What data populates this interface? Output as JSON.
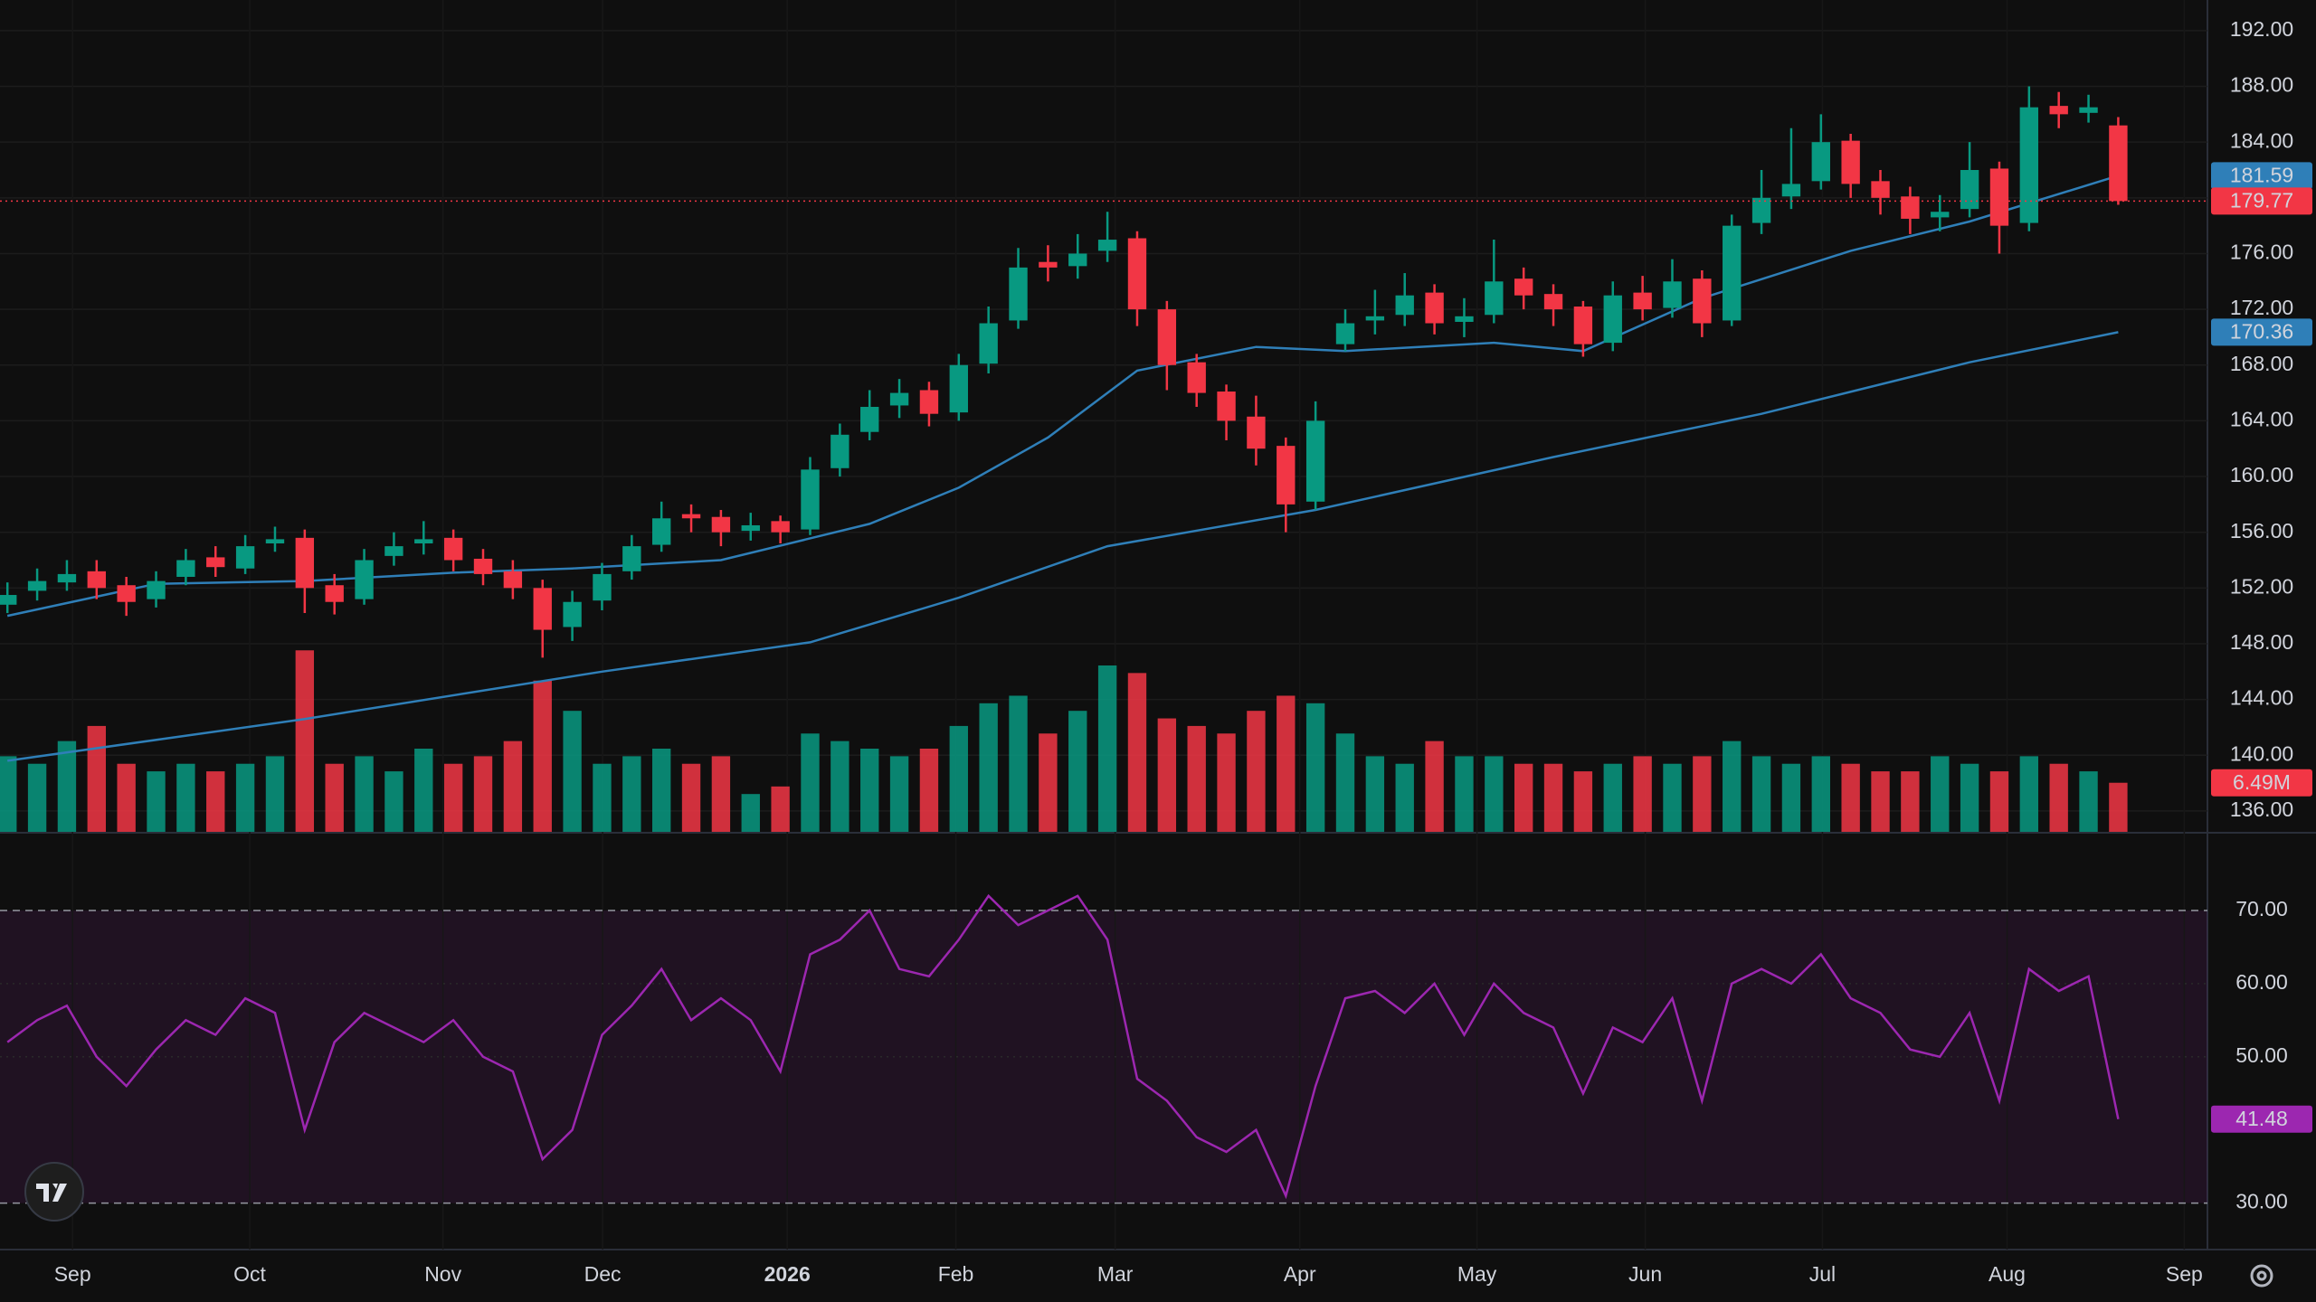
{
  "chart_data": {
    "type": "candlestick",
    "categories": [
      null,
      null,
      null,
      null,
      null,
      null,
      null,
      null,
      null,
      null,
      null,
      null,
      null,
      null,
      null,
      null,
      null,
      null,
      null,
      null,
      null,
      null,
      null,
      null,
      null,
      null,
      null,
      null,
      null,
      null,
      null,
      null,
      null,
      null,
      null,
      null,
      null,
      null,
      null,
      null,
      null,
      null,
      null,
      null,
      null,
      null,
      null,
      null,
      null,
      null,
      null,
      null,
      null,
      null,
      null,
      null,
      null,
      null,
      null,
      null,
      null,
      null,
      null,
      null,
      null,
      null,
      null,
      null,
      null,
      null,
      null,
      null
    ],
    "open": [
      150.8,
      151.8,
      152.4,
      153.2,
      152.2,
      151.2,
      152.8,
      154.2,
      153.4,
      155.2,
      155.6,
      152.2,
      151.2,
      154.3,
      155.2,
      155.6,
      154.1,
      153.2,
      152,
      149.2,
      151.1,
      153.2,
      155.1,
      157.3,
      157.1,
      156.1,
      156.8,
      156.2,
      160.6,
      163.2,
      165.1,
      166.2,
      164.6,
      168.1,
      171.2,
      175.4,
      175.1,
      176.2,
      177.1,
      172,
      168.2,
      166.1,
      164.3,
      162.2,
      158.2,
      169.5,
      171.2,
      171.6,
      173.2,
      171.1,
      171.6,
      174.2,
      173.1,
      172.2,
      169.6,
      173.2,
      172.1,
      174.2,
      171.2,
      178.2,
      180.1,
      181.2,
      184.1,
      181.2,
      180.1,
      178.6,
      179.2,
      182.1,
      178.2,
      186.6,
      186.1,
      185.2
    ],
    "high": [
      152.4,
      153.4,
      154,
      154,
      152.8,
      153.2,
      154.8,
      155,
      155.8,
      156.4,
      156.2,
      153,
      154.8,
      156,
      156.8,
      156.2,
      154.8,
      154,
      152.6,
      151.8,
      153.8,
      155.8,
      158.2,
      158,
      157.6,
      157.4,
      157.2,
      161.4,
      163.8,
      166.2,
      167,
      166.8,
      168.8,
      172.2,
      176.4,
      176.6,
      177.4,
      179,
      177.6,
      172.6,
      168.8,
      166.6,
      165.8,
      162.8,
      165.4,
      172,
      173.4,
      174.6,
      173.8,
      172.8,
      177,
      175,
      173.8,
      172.6,
      174,
      174.4,
      175.6,
      174.8,
      178.8,
      182,
      185,
      186,
      184.6,
      182,
      180.8,
      180.2,
      184,
      182.6,
      188,
      187.6,
      187.4,
      185.8
    ],
    "low": [
      150.2,
      151.1,
      151.8,
      151.2,
      150,
      150.6,
      152.2,
      152.8,
      153,
      154.6,
      150.2,
      150.1,
      150.8,
      153.6,
      154.4,
      153.2,
      152.2,
      151.2,
      147,
      148.2,
      150.4,
      152.6,
      154.6,
      156,
      155,
      155.4,
      155.2,
      155.8,
      160,
      162.6,
      164.2,
      163.6,
      164,
      167.4,
      170.6,
      174,
      174.2,
      175.4,
      170.8,
      166.2,
      165,
      162.6,
      160.8,
      156,
      157.6,
      169,
      170.2,
      170.8,
      170.2,
      170,
      171,
      172,
      170.8,
      168.6,
      169,
      171.2,
      171.4,
      170,
      170.8,
      177.4,
      179.2,
      180.6,
      180,
      178.8,
      177.4,
      177.6,
      178.6,
      176,
      177.6,
      185,
      185.4,
      179.5
    ],
    "close": [
      151.5,
      152.5,
      153,
      152,
      151,
      152.5,
      154,
      153.5,
      155,
      155.5,
      152,
      151,
      154,
      155,
      155.5,
      154,
      153,
      152,
      149,
      151,
      153,
      155,
      157,
      157,
      156,
      156.5,
      156,
      160.5,
      163,
      165,
      166,
      164.5,
      168,
      171,
      175,
      175,
      176,
      177,
      172,
      168,
      166,
      164,
      162,
      158,
      164,
      171,
      171.5,
      173,
      171,
      171.5,
      174,
      173,
      172,
      169.5,
      173,
      172,
      174,
      171,
      178,
      180,
      181,
      184,
      181,
      180,
      178.5,
      179,
      182,
      178,
      186.5,
      186,
      186.5,
      179.77
    ],
    "up_color": "#089981",
    "down_color": "#f23645",
    "ylim": [
      134.5,
      194.2
    ],
    "yticks": [
      {
        "value": 136,
        "label": "136.00"
      },
      {
        "value": 140,
        "label": "140.00"
      },
      {
        "value": 144,
        "label": "144.00"
      },
      {
        "value": 148,
        "label": "148.00"
      },
      {
        "value": 152,
        "label": "152.00"
      },
      {
        "value": 156,
        "label": "156.00"
      },
      {
        "value": 160,
        "label": "160.00"
      },
      {
        "value": 164,
        "label": "164.00"
      },
      {
        "value": 168,
        "label": "168.00"
      },
      {
        "value": 172,
        "label": "172.00"
      },
      {
        "value": 176,
        "label": "176.00"
      },
      {
        "value": 180,
        "label": "180.00"
      },
      {
        "value": 184,
        "label": "184.00"
      },
      {
        "value": 188,
        "label": "188.00"
      },
      {
        "value": 192,
        "label": "192.00"
      }
    ],
    "xlim": [
      -0.25,
      74
    ],
    "xticks": [
      {
        "value": 2.19,
        "label": "Sep"
      },
      {
        "value": 8.15,
        "label": "Oct"
      },
      {
        "value": 14.65,
        "label": "Nov"
      },
      {
        "value": 20.02,
        "label": "Dec"
      },
      {
        "value": 26.23,
        "label": "2026"
      },
      {
        "value": 31.9,
        "label": "Feb"
      },
      {
        "value": 37.26,
        "label": "Mar"
      },
      {
        "value": 43.47,
        "label": "Apr"
      },
      {
        "value": 49.43,
        "label": "May"
      },
      {
        "value": 55.09,
        "label": "Jun"
      },
      {
        "value": 61.05,
        "label": "Jul"
      },
      {
        "value": 67.26,
        "label": "Aug"
      },
      {
        "value": 73.22,
        "label": "Sep"
      }
    ],
    "moving_averages": [
      {
        "color": "#2f7fb8",
        "x": [
          0,
          5,
          10,
          15,
          19,
          24,
          29,
          32,
          35,
          38,
          42,
          45,
          50,
          53,
          57,
          62,
          66,
          71
        ],
        "values": [
          150.0,
          152.3,
          152.5,
          153.1,
          153.4,
          154.0,
          156.6,
          159.2,
          162.8,
          167.6,
          169.3,
          169.0,
          169.6,
          169.0,
          172.8,
          176.2,
          178.3,
          181.59
        ]
      },
      {
        "color": "#2f7fb8",
        "x": [
          0,
          10,
          20,
          27,
          32,
          37,
          44,
          52,
          59,
          66,
          71
        ],
        "values": [
          139.6,
          142.6,
          146.0,
          148.1,
          151.3,
          155.0,
          157.6,
          161.4,
          164.5,
          168.2,
          170.36
        ]
      }
    ],
    "volume": {
      "ylim": [
        0,
        110
      ],
      "values": [
        10,
        9,
        12,
        14,
        9,
        8,
        9,
        8,
        9,
        10,
        24,
        9,
        10,
        8,
        11,
        9,
        10,
        12,
        20,
        16,
        9,
        10,
        11,
        9,
        10,
        5,
        6,
        13,
        12,
        11,
        10,
        11,
        14,
        17,
        18,
        13,
        16,
        22,
        21,
        15,
        14,
        13,
        16,
        18,
        17,
        13,
        10,
        9,
        12,
        10,
        10,
        9,
        9,
        8,
        9,
        10,
        9,
        10,
        12,
        10,
        9,
        10,
        9,
        8,
        8,
        10,
        9,
        8,
        10,
        9,
        8,
        6.49
      ],
      "value_labels": [
        null,
        null,
        null,
        null,
        null,
        null,
        null,
        null,
        null,
        null,
        null,
        null,
        null,
        null,
        null,
        null,
        null,
        null,
        null,
        null,
        null,
        null,
        null,
        null,
        null,
        null,
        null,
        null,
        null,
        null,
        null,
        null,
        null,
        null,
        null,
        null,
        null,
        null,
        null,
        null,
        null,
        null,
        null,
        null,
        null,
        null,
        null,
        null,
        null,
        null,
        null,
        null,
        null,
        null,
        null,
        null,
        null,
        null,
        null,
        null,
        null,
        null,
        null,
        null,
        null,
        null,
        null,
        null,
        null,
        null,
        null,
        "6.49M"
      ]
    },
    "rsi": {
      "color": "#9c27b0",
      "ylim": [
        23.9,
        80.5
      ],
      "yticks": [
        {
          "value": 30,
          "label": "30.00"
        },
        {
          "value": 50,
          "label": "50.00"
        },
        {
          "value": 60,
          "label": "60.00"
        },
        {
          "value": 70,
          "label": "70.00"
        }
      ],
      "values": [
        52,
        55,
        57,
        50,
        46,
        51,
        55,
        53,
        58,
        56,
        40,
        52,
        56,
        54,
        52,
        55,
        50,
        48,
        36,
        40,
        53,
        57,
        62,
        55,
        58,
        55,
        48,
        64,
        66,
        70,
        62,
        61,
        66,
        72,
        68,
        70,
        72,
        66,
        47,
        44,
        39,
        37,
        40,
        31,
        46,
        58,
        59,
        56,
        60,
        53,
        60,
        56,
        54,
        45,
        54,
        52,
        58,
        44,
        60,
        62,
        60,
        64,
        58,
        56,
        51,
        50,
        56,
        44,
        62,
        59,
        61,
        41.48
      ]
    }
  }
}
